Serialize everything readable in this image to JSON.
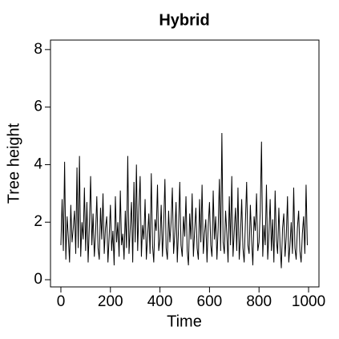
{
  "chart_data": {
    "type": "line",
    "title": "Hybrid",
    "x_label": "Time",
    "y_label": "Tree height",
    "x": [
      0,
      5,
      10,
      15,
      20,
      25,
      30,
      35,
      40,
      45,
      50,
      55,
      60,
      65,
      70,
      75,
      80,
      85,
      90,
      95,
      100,
      105,
      110,
      115,
      120,
      125,
      130,
      135,
      140,
      145,
      150,
      155,
      160,
      165,
      170,
      175,
      180,
      185,
      190,
      195,
      200,
      205,
      210,
      215,
      220,
      225,
      230,
      235,
      240,
      245,
      250,
      255,
      260,
      265,
      270,
      275,
      280,
      285,
      290,
      295,
      300,
      305,
      310,
      315,
      320,
      325,
      330,
      335,
      340,
      345,
      350,
      355,
      360,
      365,
      370,
      375,
      380,
      385,
      390,
      395,
      400,
      405,
      410,
      415,
      420,
      425,
      430,
      435,
      440,
      445,
      450,
      455,
      460,
      465,
      470,
      475,
      480,
      485,
      490,
      495,
      500,
      505,
      510,
      515,
      520,
      525,
      530,
      535,
      540,
      545,
      550,
      555,
      560,
      565,
      570,
      575,
      580,
      585,
      590,
      595,
      600,
      605,
      610,
      615,
      620,
      625,
      630,
      635,
      640,
      645,
      650,
      655,
      660,
      665,
      670,
      675,
      680,
      685,
      690,
      695,
      700,
      705,
      710,
      715,
      720,
      725,
      730,
      735,
      740,
      745,
      750,
      755,
      760,
      765,
      770,
      775,
      780,
      785,
      790,
      795,
      800,
      805,
      810,
      815,
      820,
      825,
      830,
      835,
      840,
      845,
      850,
      855,
      860,
      865,
      870,
      875,
      880,
      885,
      890,
      895,
      900,
      905,
      910,
      915,
      920,
      925,
      930,
      935,
      940,
      945,
      950,
      955,
      960,
      965,
      970,
      975,
      980,
      985,
      990,
      995
    ],
    "series": [
      {
        "name": "Tree height",
        "color": "#000000",
        "values": [
          1.2,
          2.8,
          1.0,
          4.1,
          0.7,
          2.2,
          1.5,
          0.6,
          2.6,
          1.3,
          1.8,
          2.4,
          0.9,
          3.9,
          1.1,
          4.3,
          0.8,
          2.0,
          1.4,
          3.2,
          1.0,
          2.7,
          0.6,
          1.9,
          3.6,
          1.2,
          2.3,
          0.8,
          1.6,
          2.9,
          1.1,
          0.7,
          2.5,
          1.4,
          3.0,
          0.9,
          1.8,
          2.2,
          0.6,
          1.5,
          2.6,
          1.0,
          1.7,
          0.5,
          2.9,
          1.3,
          2.0,
          0.8,
          3.1,
          1.2,
          1.6,
          0.7,
          2.4,
          1.1,
          4.3,
          0.9,
          1.8,
          2.7,
          0.6,
          3.4,
          1.3,
          4.0,
          1.0,
          2.5,
          3.6,
          0.8,
          1.9,
          1.4,
          2.8,
          0.7,
          1.5,
          2.3,
          0.9,
          3.7,
          1.2,
          0.6,
          2.1,
          1.7,
          3.3,
          1.0,
          1.4,
          2.6,
          0.8,
          1.9,
          3.5,
          1.1,
          0.7,
          2.4,
          1.3,
          2.0,
          3.2,
          0.9,
          1.6,
          2.7,
          0.6,
          1.8,
          3.4,
          1.2,
          0.8,
          2.2,
          1.5,
          2.9,
          1.0,
          0.5,
          2.3,
          1.4,
          3.0,
          0.8,
          1.7,
          2.5,
          1.1,
          0.7,
          2.8,
          1.3,
          3.3,
          0.9,
          1.6,
          2.1,
          0.6,
          1.9,
          2.7,
          1.2,
          0.8,
          3.1,
          1.4,
          2.2,
          0.7,
          1.8,
          3.5,
          1.0,
          5.1,
          1.3,
          0.9,
          2.4,
          1.6,
          0.6,
          2.9,
          1.2,
          3.6,
          0.8,
          1.7,
          2.5,
          1.0,
          3.2,
          0.7,
          1.5,
          2.8,
          1.1,
          0.6,
          2.0,
          3.4,
          1.2,
          0.9,
          2.6,
          1.4,
          0.5,
          2.2,
          1.7,
          3.0,
          1.0,
          1.3,
          2.4,
          4.8,
          0.8,
          1.9,
          1.2,
          3.3,
          0.7,
          1.6,
          2.8,
          1.0,
          2.1,
          0.6,
          3.1,
          1.4,
          0.9,
          2.5,
          1.2,
          0.4,
          1.8,
          2.3,
          0.8,
          1.5,
          2.9,
          0.6,
          1.2,
          2.0,
          0.9,
          3.2,
          1.1,
          0.7,
          1.8,
          2.4,
          1.0,
          0.6,
          1.6,
          2.2,
          0.9,
          3.3,
          1.2
        ]
      }
    ],
    "xlim": [
      -42,
      1042
    ],
    "xticks": [
      0,
      200,
      400,
      600,
      800,
      1000
    ],
    "ylim": [
      -0.25,
      8.33
    ],
    "yticks": [
      0,
      2,
      4,
      6,
      8
    ],
    "grid": false
  }
}
